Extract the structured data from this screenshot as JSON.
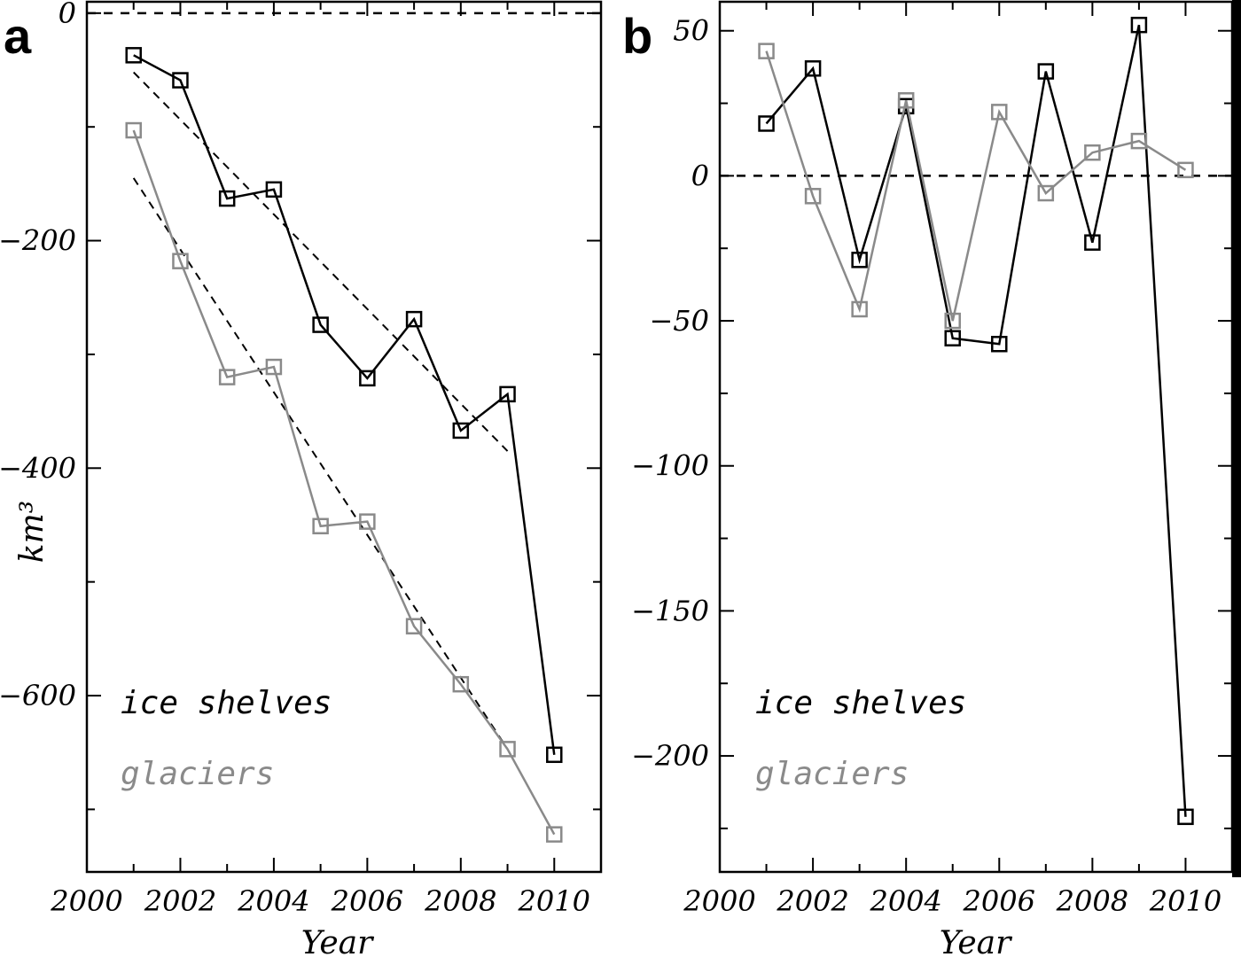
{
  "chart_data": [
    {
      "type": "line",
      "panel_label": "a",
      "xlabel": "Year",
      "ylabel": "km³",
      "xlim": [
        2000,
        2011
      ],
      "ylim": [
        -755,
        10
      ],
      "xticks": [
        2000,
        2002,
        2004,
        2006,
        2008,
        2010
      ],
      "yticks": [
        0,
        -200,
        -400,
        -600
      ],
      "zero_line": true,
      "legend_position": "bottom-left",
      "series": [
        {
          "name": "ice shelves",
          "color": "#000000",
          "x": [
            2001,
            2002,
            2003,
            2004,
            2005,
            2006,
            2007,
            2008,
            2009,
            2010
          ],
          "y": [
            -37,
            -59,
            -163,
            -155,
            -274,
            -321,
            -269,
            -367,
            -335,
            -652
          ]
        },
        {
          "name": "glaciers",
          "color": "#8a8a8a",
          "x": [
            2001,
            2002,
            2003,
            2004,
            2005,
            2006,
            2007,
            2008,
            2009,
            2010
          ],
          "y": [
            -103,
            -218,
            -320,
            -311,
            -451,
            -447,
            -539,
            -590,
            -647,
            -722
          ]
        }
      ],
      "trend_lines": [
        {
          "name": "ice shelves trend",
          "color": "#000000",
          "x": [
            2001,
            2009
          ],
          "y": [
            -52,
            -385
          ]
        },
        {
          "name": "glaciers trend",
          "color": "#555555",
          "x": [
            2001,
            2009
          ],
          "y": [
            -145,
            -647
          ]
        }
      ]
    },
    {
      "type": "line",
      "panel_label": "b",
      "xlabel": "Year",
      "ylabel": "",
      "xlim": [
        2000,
        2011
      ],
      "ylim": [
        -240,
        60
      ],
      "xticks": [
        2000,
        2002,
        2004,
        2006,
        2008,
        2010
      ],
      "yticks": [
        50,
        0,
        -50,
        -100,
        -150,
        -200
      ],
      "zero_line": true,
      "legend_position": "bottom-left",
      "series": [
        {
          "name": "ice shelves",
          "color": "#000000",
          "x": [
            2001,
            2002,
            2003,
            2004,
            2005,
            2006,
            2007,
            2008,
            2009,
            2010
          ],
          "y": [
            18,
            37,
            -29,
            24,
            -56,
            -58,
            36,
            -23,
            52,
            -221
          ]
        },
        {
          "name": "glaciers",
          "color": "#8a8a8a",
          "x": [
            2001,
            2002,
            2003,
            2004,
            2005,
            2006,
            2007,
            2008,
            2009,
            2010
          ],
          "y": [
            43,
            -7,
            -46,
            26,
            -50,
            22,
            -6,
            8,
            12,
            2
          ]
        }
      ]
    }
  ]
}
